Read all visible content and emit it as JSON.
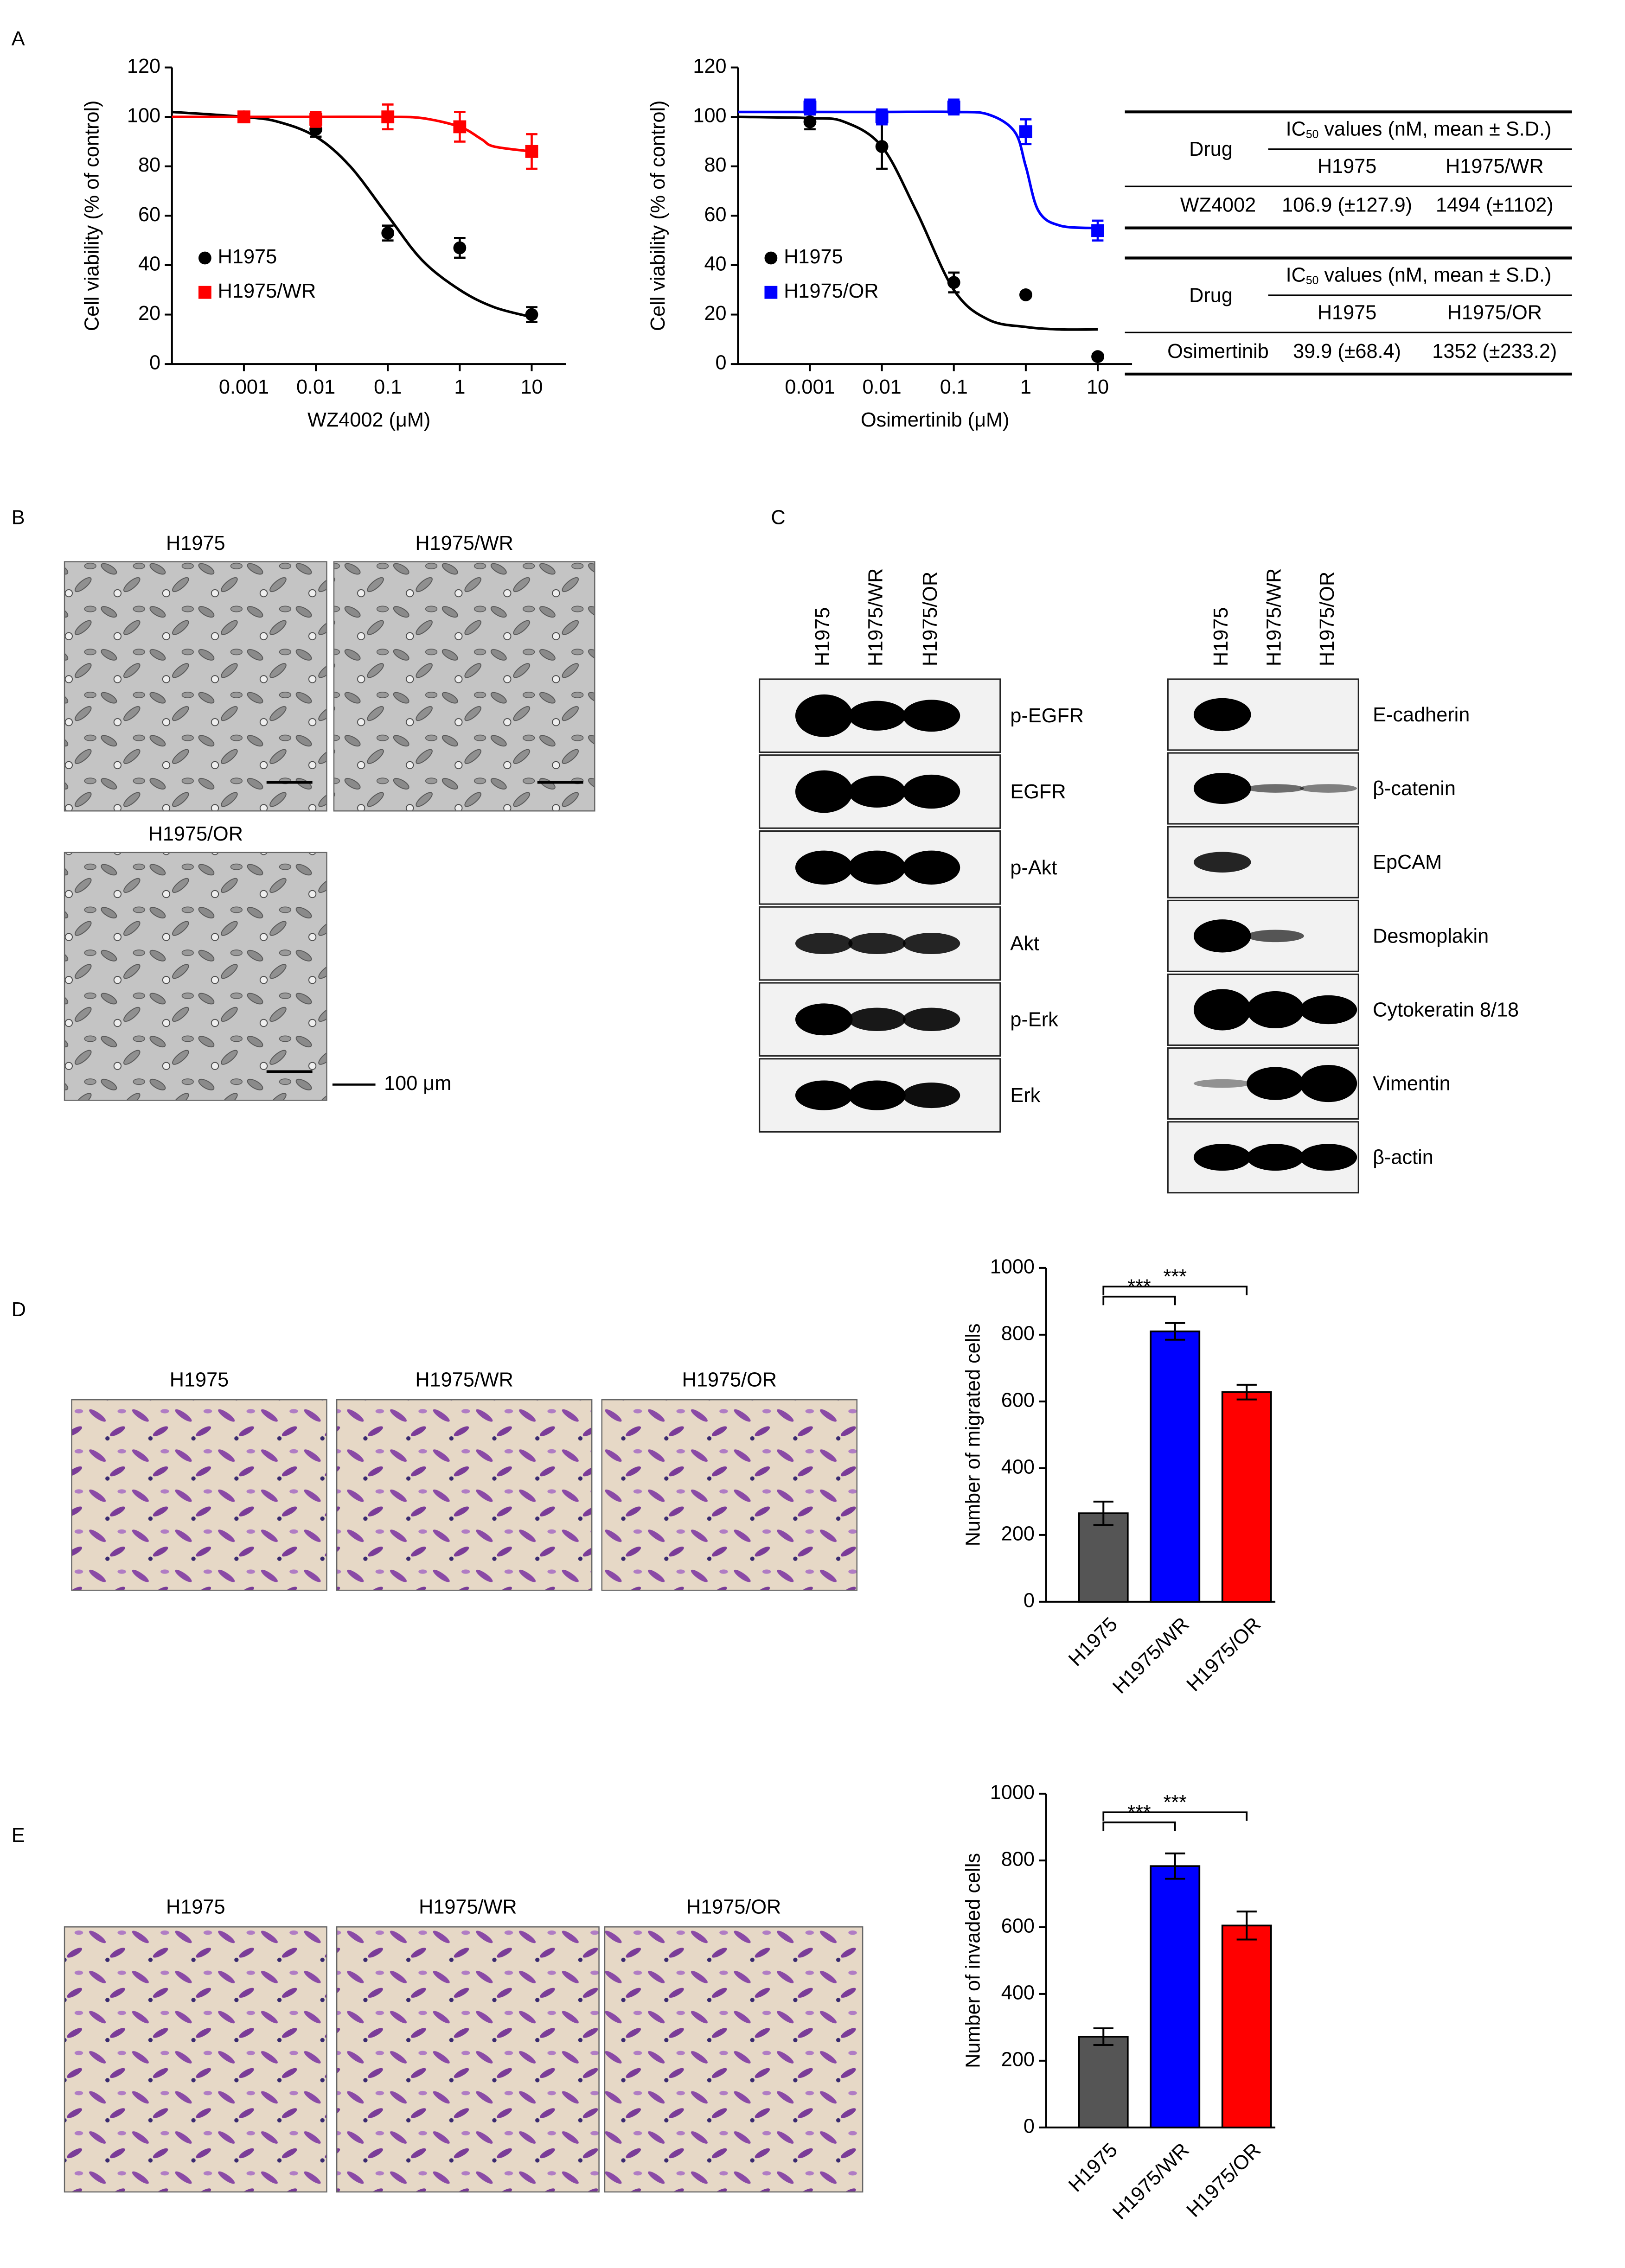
{
  "panel_labels": [
    "A",
    "B",
    "C",
    "D",
    "E"
  ],
  "chart_data": [
    {
      "type": "scatter",
      "x_scale": "log",
      "xlabel": "WZ4002 (μM)",
      "ylabel": "Cell viability (% of control)",
      "x": [
        0.001,
        0.01,
        0.1,
        1,
        10
      ],
      "xlim": [
        0.0001,
        30
      ],
      "xticks": [
        0.001,
        0.01,
        0.1,
        1,
        10
      ],
      "ylim": [
        0,
        120
      ],
      "yticks": [
        0,
        20,
        40,
        60,
        80,
        100,
        120
      ],
      "legend": "lower left",
      "series": [
        {
          "name": "H1975",
          "color": "#000000",
          "marker": "circle",
          "values": [
            100,
            95,
            53,
            47,
            20
          ],
          "errors": [
            2,
            3,
            3,
            4,
            3
          ],
          "fit": {
            "x": [
              0.0001,
              0.001,
              0.003,
              0.01,
              0.03,
              0.1,
              0.3,
              1,
              3,
              10
            ],
            "values": [
              102,
              100,
              98,
              92,
              80,
              60,
              42,
              30,
              23,
              19
            ]
          }
        },
        {
          "name": "H1975/WR",
          "color": "#ff0000",
          "marker": "square",
          "values": [
            100,
            99,
            100,
            96,
            86
          ],
          "errors": [
            2,
            3,
            5,
            6,
            7
          ],
          "fit": {
            "x": [
              0.0001,
              0.001,
              0.01,
              0.1,
              0.3,
              1,
              2,
              3,
              10
            ],
            "values": [
              100,
              100,
              100,
              100,
              99.5,
              96,
              91,
              88,
              86
            ]
          }
        }
      ]
    },
    {
      "type": "scatter",
      "x_scale": "log",
      "xlabel": "Osimertinib (μM)",
      "ylabel": "Cell viability (% of control)",
      "x": [
        0.001,
        0.01,
        0.1,
        1,
        10
      ],
      "xlim": [
        0.0001,
        30
      ],
      "xticks": [
        0.001,
        0.01,
        0.1,
        1,
        10
      ],
      "ylim": [
        0,
        120
      ],
      "yticks": [
        0,
        20,
        40,
        60,
        80,
        100,
        120
      ],
      "legend": "lower left",
      "series": [
        {
          "name": "H1975",
          "color": "#000000",
          "marker": "circle",
          "values": [
            98,
            88,
            33,
            28,
            3
          ],
          "errors": [
            3,
            9,
            4,
            1,
            1
          ],
          "fit": {
            "x": [
              0.0001,
              0.001,
              0.003,
              0.01,
              0.03,
              0.1,
              0.3,
              1,
              3,
              10
            ],
            "values": [
              100,
              99.5,
              98,
              88,
              62,
              30,
              18,
              15,
              14,
              14
            ]
          }
        },
        {
          "name": "H1975/OR",
          "color": "#0000ff",
          "marker": "square",
          "values": [
            104,
            100,
            104,
            94,
            54
          ],
          "errors": [
            3,
            3,
            3,
            5,
            4
          ],
          "fit": {
            "x": [
              0.0001,
              0.001,
              0.01,
              0.1,
              0.3,
              0.7,
              1,
              1.5,
              3,
              10
            ],
            "values": [
              102,
              102,
              102,
              102,
              101,
              94,
              80,
              62,
              56,
              55
            ]
          }
        }
      ]
    },
    {
      "type": "bar",
      "ylabel": "Number of migrated cells",
      "categories": [
        "H1975",
        "H1975/WR",
        "H1975/OR"
      ],
      "values": [
        265,
        810,
        628
      ],
      "errors": [
        35,
        25,
        22
      ],
      "colors": [
        "#555555",
        "#0000ff",
        "#ff0000"
      ],
      "ylim": [
        0,
        1000
      ],
      "yticks": [
        0,
        200,
        400,
        600,
        800,
        1000
      ],
      "significance": [
        {
          "label": "***",
          "between": [
            0,
            1
          ]
        },
        {
          "label": "***",
          "between": [
            0,
            2
          ]
        }
      ]
    },
    {
      "type": "bar",
      "ylabel": "Number of invaded cells",
      "categories": [
        "H1975",
        "H1975/WR",
        "H1975/OR"
      ],
      "values": [
        272,
        783,
        605
      ],
      "errors": [
        25,
        38,
        42
      ],
      "colors": [
        "#555555",
        "#0000ff",
        "#ff0000"
      ],
      "ylim": [
        0,
        1000
      ],
      "yticks": [
        0,
        200,
        400,
        600,
        800,
        1000
      ],
      "significance": [
        {
          "label": "***",
          "between": [
            0,
            1
          ]
        },
        {
          "label": "***",
          "between": [
            0,
            2
          ]
        }
      ]
    }
  ],
  "tables": [
    {
      "drug": "Drug",
      "ic": "IC",
      "sub": "50",
      "rest": " values (nM, mean ± S.D.)",
      "columns": [
        "H1975",
        "H1975/WR"
      ],
      "rows": [
        [
          "WZ4002",
          "106.9 (±127.9)",
          "1494 (±1102)"
        ]
      ]
    },
    {
      "drug": "Drug",
      "ic": "IC",
      "sub": "50",
      "rest": " values (nM, mean ± S.D.)",
      "columns": [
        "H1975",
        "H1975/OR"
      ],
      "rows": [
        [
          "Osimertinib",
          "39.9 (±68.4)",
          "1352 (±233.2)"
        ]
      ]
    }
  ],
  "micrographs": {
    "B": [
      "H1975",
      "H1975/WR",
      "H1975/OR"
    ],
    "scale_bar": "100 μm",
    "D": [
      "H1975",
      "H1975/WR",
      "H1975/OR"
    ],
    "E": [
      "H1975",
      "H1975/WR",
      "H1975/OR"
    ]
  },
  "blots": [
    {
      "lanes": [
        "H1975",
        "H1975/WR",
        "H1975/OR"
      ],
      "proteins": [
        "p-EGFR",
        "EGFR",
        "p-Akt",
        "Akt",
        "p-Erk",
        "Erk"
      ]
    },
    {
      "lanes": [
        "H1975",
        "H1975/WR",
        "H1975/OR"
      ],
      "proteins": [
        "E-cadherin",
        "β-catenin",
        "EpCAM",
        "Desmoplakin",
        "Cytokeratin 8/18",
        "Vimentin",
        "β-actin"
      ]
    }
  ]
}
